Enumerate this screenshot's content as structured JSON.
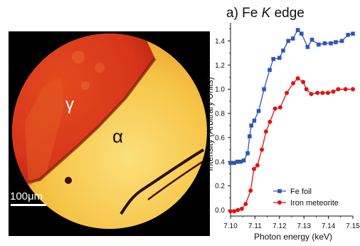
{
  "micrograph": {
    "label_gamma": "γ",
    "label_alpha": "α",
    "scale_bar": "100μm"
  },
  "chart_data": {
    "type": "line",
    "title_prefix": "a) Fe ",
    "title_italic": "K",
    "title_suffix": " edge",
    "xlabel": "Photon energy (keV)",
    "ylabel": "Intensity (Arbitrary Units)",
    "xlim": [
      7.1,
      7.15
    ],
    "ylim": [
      -0.05,
      1.55
    ],
    "x_ticks": [
      "7.10",
      "7.11",
      "7.12",
      "7.13",
      "7.14",
      "7.15"
    ],
    "y_ticks": [
      "0.0",
      "0.2",
      "0.4",
      "0.6",
      "0.8",
      "1.0",
      "1.2",
      "1.4"
    ],
    "grid": false,
    "legend_position": "bottom-right",
    "series": [
      {
        "name": "Fe foil",
        "color": "#2d57b3",
        "marker": "square",
        "points": [
          [
            7.1,
            0.39
          ],
          [
            7.1015,
            0.39
          ],
          [
            7.1028,
            0.4
          ],
          [
            7.1041,
            0.4
          ],
          [
            7.1054,
            0.41
          ],
          [
            7.107,
            0.47
          ],
          [
            7.1078,
            0.61
          ],
          [
            7.1085,
            0.7
          ],
          [
            7.1097,
            0.74
          ],
          [
            7.1115,
            0.82
          ],
          [
            7.1137,
            1.0
          ],
          [
            7.116,
            1.16
          ],
          [
            7.1175,
            1.25
          ],
          [
            7.12,
            1.26
          ],
          [
            7.1215,
            1.32
          ],
          [
            7.1236,
            1.4
          ],
          [
            7.1255,
            1.42
          ],
          [
            7.1275,
            1.49
          ],
          [
            7.129,
            1.46
          ],
          [
            7.1315,
            1.35
          ],
          [
            7.1333,
            1.41
          ],
          [
            7.136,
            1.37
          ],
          [
            7.1385,
            1.38
          ],
          [
            7.141,
            1.38
          ],
          [
            7.143,
            1.39
          ],
          [
            7.1455,
            1.4
          ],
          [
            7.148,
            1.45
          ],
          [
            7.15,
            1.46
          ]
        ]
      },
      {
        "name": "Iron meteorite",
        "color": "#e11414",
        "marker": "circle",
        "points": [
          [
            7.1,
            -0.01
          ],
          [
            7.1015,
            -0.01
          ],
          [
            7.103,
            0.0
          ],
          [
            7.1046,
            0.01
          ],
          [
            7.1062,
            0.05
          ],
          [
            7.1082,
            0.16
          ],
          [
            7.1096,
            0.34
          ],
          [
            7.111,
            0.37
          ],
          [
            7.1128,
            0.5
          ],
          [
            7.1145,
            0.65
          ],
          [
            7.1161,
            0.73
          ],
          [
            7.1182,
            0.84
          ],
          [
            7.1203,
            0.85
          ],
          [
            7.123,
            0.97
          ],
          [
            7.1256,
            1.05
          ],
          [
            7.1275,
            1.09
          ],
          [
            7.1297,
            1.06
          ],
          [
            7.131,
            1.0
          ],
          [
            7.133,
            0.96
          ],
          [
            7.1355,
            0.97
          ],
          [
            7.1376,
            0.97
          ],
          [
            7.1398,
            0.97
          ],
          [
            7.142,
            0.98
          ],
          [
            7.144,
            1.0
          ],
          [
            7.147,
            1.0
          ],
          [
            7.15,
            1.0
          ]
        ]
      }
    ]
  }
}
